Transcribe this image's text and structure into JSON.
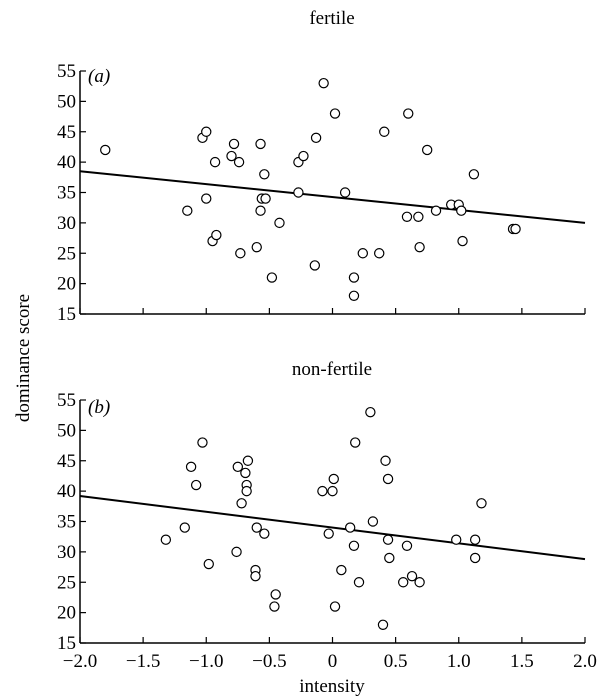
{
  "chart_data": [
    {
      "type": "scatter",
      "title": "fertile",
      "panel_label": "(a)",
      "xlabel": "intensity",
      "ylabel": "dominance score",
      "xlim": [
        -2.0,
        2.0
      ],
      "ylim": [
        15,
        55
      ],
      "x_ticks": [
        "−2.0",
        "−1.5",
        "−1.0",
        "−0.5",
        "0",
        "0.5",
        "1.0",
        "1.5",
        "2.0"
      ],
      "y_ticks": [
        "15",
        "20",
        "25",
        "30",
        "35",
        "40",
        "45",
        "50",
        "55"
      ],
      "show_x_tick_labels": false,
      "grid": false,
      "points": [
        {
          "x": -1.8,
          "y": 42
        },
        {
          "x": -1.15,
          "y": 32
        },
        {
          "x": -1.03,
          "y": 44
        },
        {
          "x": -1.0,
          "y": 45
        },
        {
          "x": -1.0,
          "y": 34
        },
        {
          "x": -0.95,
          "y": 27
        },
        {
          "x": -0.93,
          "y": 40
        },
        {
          "x": -0.92,
          "y": 28
        },
        {
          "x": -0.8,
          "y": 41
        },
        {
          "x": -0.78,
          "y": 43
        },
        {
          "x": -0.74,
          "y": 40
        },
        {
          "x": -0.73,
          "y": 25
        },
        {
          "x": -0.6,
          "y": 26
        },
        {
          "x": -0.57,
          "y": 43
        },
        {
          "x": -0.57,
          "y": 32
        },
        {
          "x": -0.56,
          "y": 34
        },
        {
          "x": -0.54,
          "y": 38
        },
        {
          "x": -0.53,
          "y": 34
        },
        {
          "x": -0.48,
          "y": 21
        },
        {
          "x": -0.42,
          "y": 30
        },
        {
          "x": -0.27,
          "y": 40
        },
        {
          "x": -0.27,
          "y": 35
        },
        {
          "x": -0.23,
          "y": 41
        },
        {
          "x": -0.13,
          "y": 44
        },
        {
          "x": -0.14,
          "y": 23
        },
        {
          "x": -0.07,
          "y": 53
        },
        {
          "x": 0.02,
          "y": 48
        },
        {
          "x": 0.1,
          "y": 35
        },
        {
          "x": 0.17,
          "y": 21
        },
        {
          "x": 0.17,
          "y": 18
        },
        {
          "x": 0.24,
          "y": 25
        },
        {
          "x": 0.37,
          "y": 25
        },
        {
          "x": 0.41,
          "y": 45
        },
        {
          "x": 0.59,
          "y": 31
        },
        {
          "x": 0.6,
          "y": 48
        },
        {
          "x": 0.68,
          "y": 31
        },
        {
          "x": 0.69,
          "y": 26
        },
        {
          "x": 0.75,
          "y": 42
        },
        {
          "x": 0.82,
          "y": 32
        },
        {
          "x": 0.94,
          "y": 33
        },
        {
          "x": 1.0,
          "y": 33
        },
        {
          "x": 1.02,
          "y": 32
        },
        {
          "x": 1.03,
          "y": 27
        },
        {
          "x": 1.12,
          "y": 38
        },
        {
          "x": 1.43,
          "y": 29
        },
        {
          "x": 1.45,
          "y": 29
        }
      ],
      "fit_line": {
        "x": [
          -2.0,
          2.0
        ],
        "y": [
          38.5,
          30.0
        ]
      }
    },
    {
      "type": "scatter",
      "title": "non-fertile",
      "panel_label": "(b)",
      "xlabel": "intensity",
      "ylabel": "dominance score",
      "xlim": [
        -2.0,
        2.0
      ],
      "ylim": [
        15,
        55
      ],
      "x_ticks": [
        "−2.0",
        "−1.5",
        "−1.0",
        "−0.5",
        "0",
        "0.5",
        "1.0",
        "1.5",
        "2.0"
      ],
      "y_ticks": [
        "15",
        "20",
        "25",
        "30",
        "35",
        "40",
        "45",
        "50",
        "55"
      ],
      "show_x_tick_labels": true,
      "grid": false,
      "points": [
        {
          "x": -1.32,
          "y": 32
        },
        {
          "x": -1.17,
          "y": 34
        },
        {
          "x": -1.12,
          "y": 44
        },
        {
          "x": -1.08,
          "y": 41
        },
        {
          "x": -1.03,
          "y": 48
        },
        {
          "x": -0.98,
          "y": 28
        },
        {
          "x": -0.76,
          "y": 30
        },
        {
          "x": -0.75,
          "y": 44
        },
        {
          "x": -0.72,
          "y": 38
        },
        {
          "x": -0.69,
          "y": 43
        },
        {
          "x": -0.68,
          "y": 41
        },
        {
          "x": -0.68,
          "y": 40
        },
        {
          "x": -0.67,
          "y": 45
        },
        {
          "x": -0.61,
          "y": 27
        },
        {
          "x": -0.61,
          "y": 26
        },
        {
          "x": -0.6,
          "y": 34
        },
        {
          "x": -0.54,
          "y": 33
        },
        {
          "x": -0.45,
          "y": 23
        },
        {
          "x": -0.46,
          "y": 21
        },
        {
          "x": -0.08,
          "y": 40
        },
        {
          "x": -0.03,
          "y": 33
        },
        {
          "x": 0.0,
          "y": 40
        },
        {
          "x": 0.01,
          "y": 42
        },
        {
          "x": 0.02,
          "y": 21
        },
        {
          "x": 0.07,
          "y": 27
        },
        {
          "x": 0.14,
          "y": 34
        },
        {
          "x": 0.17,
          "y": 31
        },
        {
          "x": 0.18,
          "y": 48
        },
        {
          "x": 0.21,
          "y": 25
        },
        {
          "x": 0.3,
          "y": 53
        },
        {
          "x": 0.32,
          "y": 35
        },
        {
          "x": 0.4,
          "y": 18
        },
        {
          "x": 0.42,
          "y": 45
        },
        {
          "x": 0.44,
          "y": 42
        },
        {
          "x": 0.44,
          "y": 32
        },
        {
          "x": 0.45,
          "y": 29
        },
        {
          "x": 0.56,
          "y": 25
        },
        {
          "x": 0.59,
          "y": 31
        },
        {
          "x": 0.63,
          "y": 26
        },
        {
          "x": 0.69,
          "y": 25
        },
        {
          "x": 0.98,
          "y": 32
        },
        {
          "x": 1.13,
          "y": 32
        },
        {
          "x": 1.13,
          "y": 29
        },
        {
          "x": 1.18,
          "y": 38
        }
      ],
      "fit_line": {
        "x": [
          -2.0,
          2.0
        ],
        "y": [
          39.2,
          28.8
        ]
      }
    }
  ]
}
